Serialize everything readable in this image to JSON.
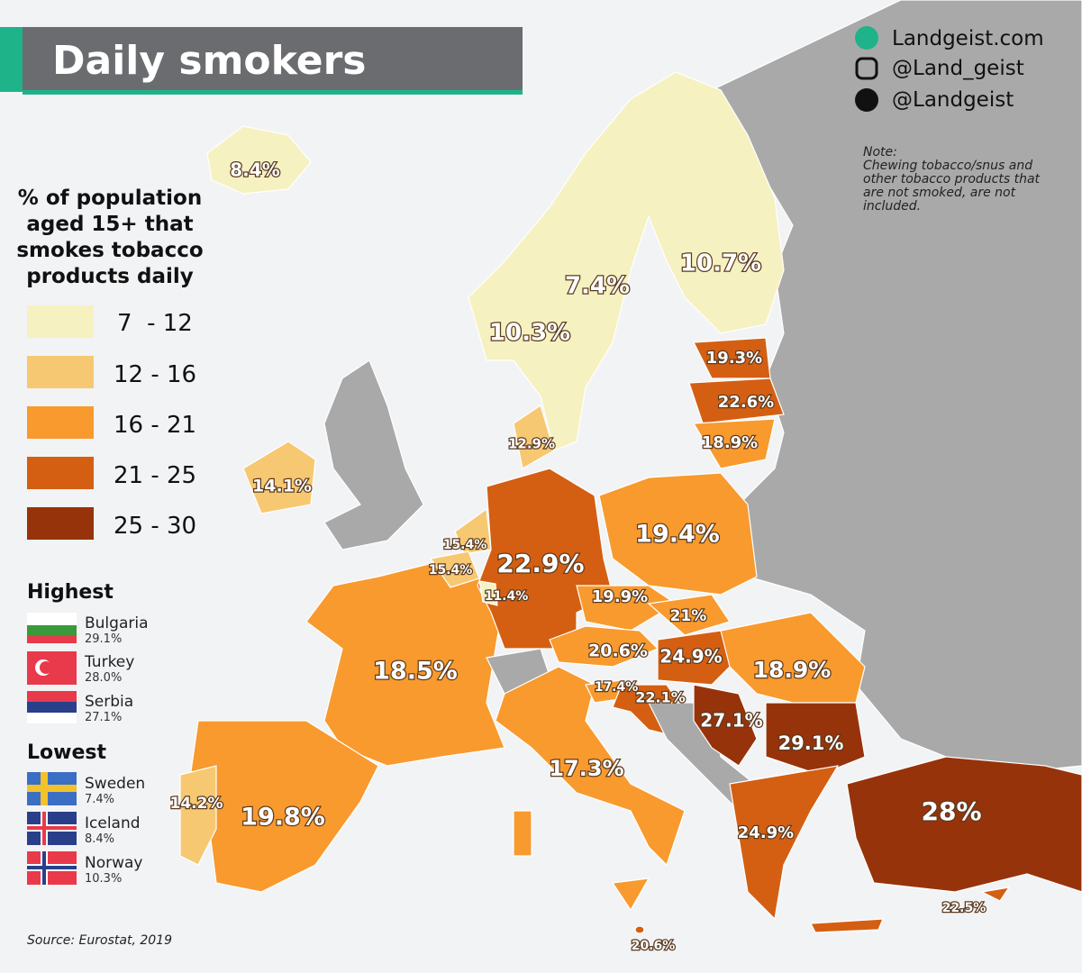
{
  "header": {
    "title": "Daily smokers"
  },
  "social": [
    "Landgeist.com",
    "@Land_geist",
    "@Landgeist"
  ],
  "note": {
    "heading": "Note:",
    "lines": [
      "Chewing tobacco/snus and",
      "other tobacco products that",
      "are not smoked, are not",
      "included."
    ]
  },
  "legend": {
    "title": [
      "% of population",
      "aged 15+ that",
      "smokes tobacco",
      "products daily"
    ],
    "classes": [
      "7  - 12",
      "12 - 16",
      "16 - 21",
      "21 - 25",
      "25 - 30"
    ]
  },
  "highest": {
    "heading": "Highest",
    "items": [
      {
        "country": "Bulgaria",
        "value": "29.1%"
      },
      {
        "country": "Turkey",
        "value": "28.0%"
      },
      {
        "country": "Serbia",
        "value": "27.1%"
      }
    ]
  },
  "lowest": {
    "heading": "Lowest",
    "items": [
      {
        "country": "Sweden",
        "value": "7.4%"
      },
      {
        "country": "Iceland",
        "value": "8.4%"
      },
      {
        "country": "Norway",
        "value": "10.3%"
      }
    ]
  },
  "source": "Source: Eurostat, 2019",
  "map_labels": [
    "8.4%",
    "7.4%",
    "10.7%",
    "10.3%",
    "19.3%",
    "22.6%",
    "18.9%",
    "12.9%",
    "14.1%",
    "15.4%",
    "15.4%",
    "22.9%",
    "11.4%",
    "19.4%",
    "19.9%",
    "21%",
    "20.6%",
    "24.9%",
    "18.9%",
    "18.5%",
    "17.4%",
    "22.1%",
    "27.1%",
    "29.1%",
    "17.3%",
    "14.2%",
    "19.8%",
    "24.9%",
    "28%",
    "22.5%",
    "20.6%"
  ]
}
